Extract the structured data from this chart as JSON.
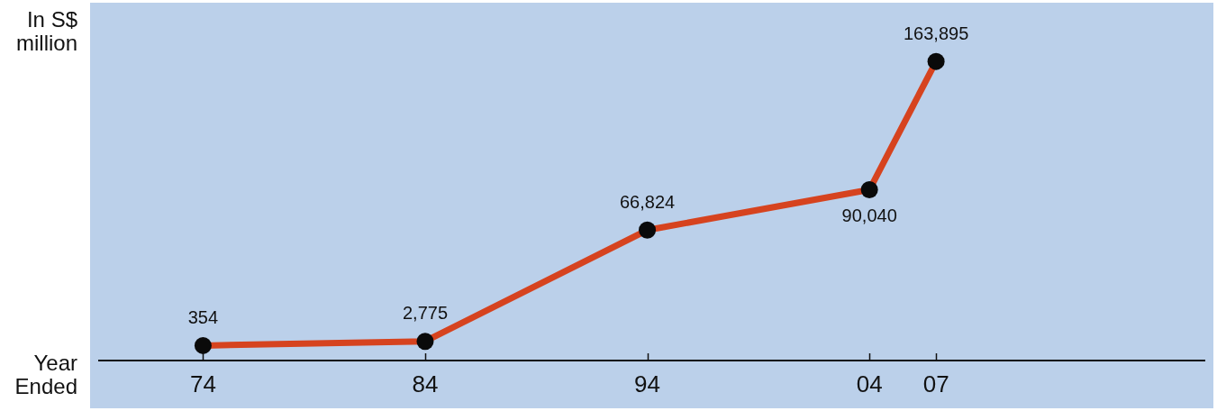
{
  "chart_data": {
    "type": "line",
    "xlabel": "Year Ended",
    "ylabel": "In S$ million",
    "x": [
      1974,
      1984,
      1994,
      2004,
      2007
    ],
    "values": [
      354,
      2775,
      66824,
      90040,
      163895
    ],
    "value_labels": [
      "354",
      "2,775",
      "66,824",
      "90,040",
      "163,895"
    ],
    "color": "#d6431f",
    "marker": "circle",
    "line_style": "solid",
    "xlim": [
      1969.3,
      2019.1
    ],
    "xticks": [
      {
        "value": 1974,
        "label": "74"
      },
      {
        "value": 1984,
        "label": "84"
      },
      {
        "value": 1994,
        "label": "94"
      },
      {
        "value": 2004,
        "label": "04"
      },
      {
        "value": 2007,
        "label": "07"
      }
    ]
  }
}
